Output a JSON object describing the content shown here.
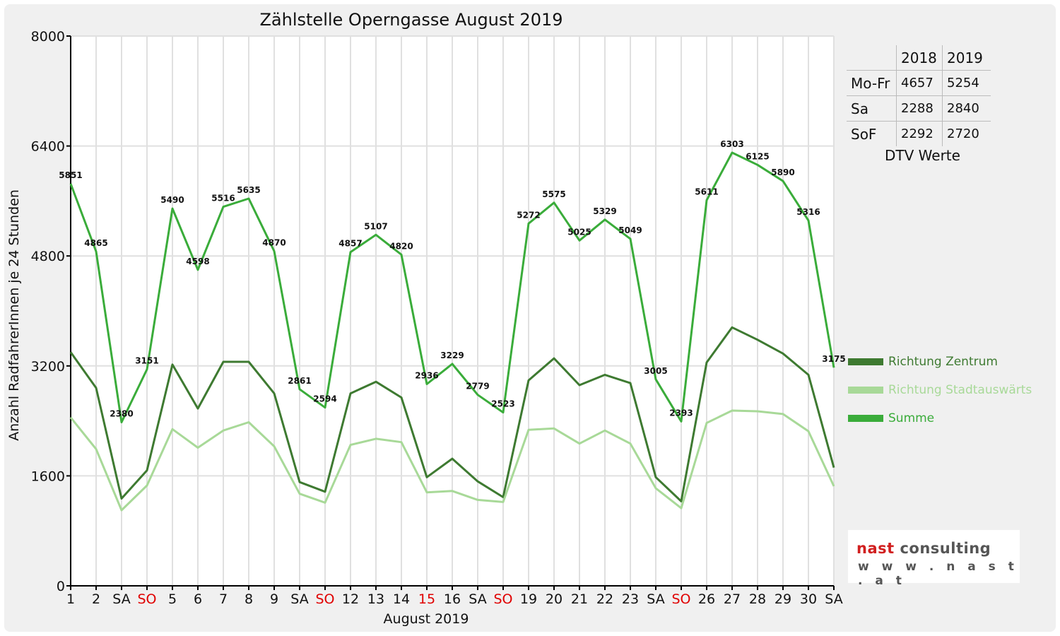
{
  "chart_data": {
    "type": "line",
    "title": "Zählstelle Operngasse August 2019",
    "xlabel": "August 2019",
    "ylabel": "Anzahl RadfahrerInnen je 24 Stunden",
    "ylim": [
      0,
      8000
    ],
    "yticks": [
      "0",
      "1600",
      "3200",
      "4800",
      "6400",
      "8000"
    ],
    "grid": true,
    "legend_position": "right",
    "categories": [
      "1",
      "2",
      "SA",
      "SO",
      "5",
      "6",
      "7",
      "8",
      "9",
      "SA",
      "SO",
      "12",
      "13",
      "14",
      "15",
      "16",
      "SA",
      "SO",
      "19",
      "20",
      "21",
      "22",
      "23",
      "SA",
      "SO",
      "26",
      "27",
      "28",
      "29",
      "30",
      "SA"
    ],
    "highlighted_categories": [
      "SO",
      "15"
    ],
    "series": [
      {
        "name": "Richtung Zentrum",
        "color": "#3e7a31",
        "values": [
          3400,
          2880,
          1270,
          1680,
          3220,
          2580,
          3260,
          3260,
          2800,
          1510,
          1370,
          2800,
          2970,
          2740,
          1580,
          1850,
          1520,
          1290,
          2990,
          3310,
          2920,
          3070,
          2950,
          1580,
          1230,
          3250,
          3760,
          3580,
          3380,
          3070,
          1720
        ]
      },
      {
        "name": "Richtung Stadtauswärts",
        "color": "#a8d998",
        "values": [
          2450,
          1990,
          1100,
          1460,
          2280,
          2010,
          2260,
          2380,
          2030,
          1340,
          1210,
          2050,
          2140,
          2090,
          1360,
          1380,
          1250,
          1220,
          2270,
          2290,
          2070,
          2260,
          2070,
          1420,
          1130,
          2370,
          2550,
          2540,
          2500,
          2250,
          1450
        ]
      },
      {
        "name": "Summe",
        "color": "#3aac3a",
        "values": [
          5851,
          4865,
          2380,
          3151,
          5490,
          4598,
          5516,
          5635,
          4870,
          2861,
          2594,
          4857,
          5107,
          4820,
          2936,
          3229,
          2779,
          2523,
          5272,
          5575,
          5025,
          5329,
          5049,
          3005,
          2393,
          5611,
          6303,
          6125,
          5890,
          5316,
          3175
        ],
        "labels": [
          "5851",
          "4865",
          "2380",
          "3151",
          "5490",
          "4598",
          "5516",
          "5635",
          "4870",
          "2861",
          "2594",
          "4857",
          "5107",
          "4820",
          "2936",
          "3229",
          "2779",
          "2523",
          "5272",
          "5575",
          "5025",
          "5329",
          "5049",
          "3005",
          "2393",
          "5611",
          "6303",
          "6125",
          "5890",
          "5316",
          "3175"
        ]
      }
    ]
  },
  "dtv_table": {
    "header": [
      "",
      "2018",
      "2019"
    ],
    "rows": [
      {
        "label": "Mo-Fr",
        "v2018": "4657",
        "v2019": "5254"
      },
      {
        "label": "Sa",
        "v2018": "2288",
        "v2019": "2840"
      },
      {
        "label": "SoF",
        "v2018": "2292",
        "v2019": "2720"
      }
    ],
    "caption": "DTV Werte"
  },
  "logo": {
    "name_accent": "nast",
    "name_rest": " consulting",
    "url": "w w w . n a s t . a t"
  },
  "colors": {
    "highlight_label": "#e00000",
    "panel_background": "#f0f0f0",
    "plot_background": "#ffffff",
    "gridline": "#e0e0e0"
  }
}
